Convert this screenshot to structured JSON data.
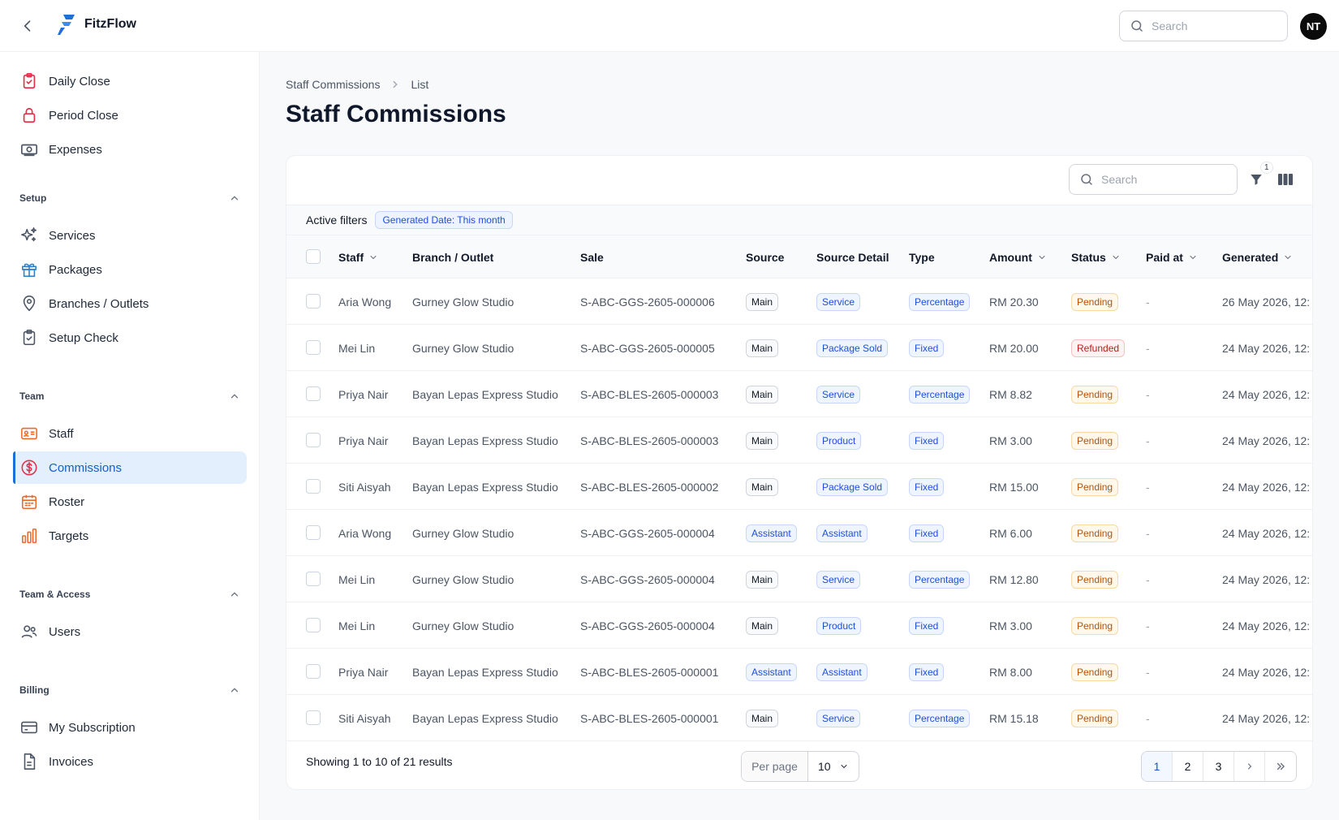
{
  "app": {
    "name": "FitzFlow"
  },
  "topbar": {
    "search_placeholder": "Search",
    "user_initials": "NT"
  },
  "sidebar": {
    "items_top": [
      {
        "label": "Daily Close",
        "icon": "clipboard-check-icon"
      },
      {
        "label": "Period Close",
        "icon": "lock-icon"
      },
      {
        "label": "Expenses",
        "icon": "banknote-icon"
      }
    ],
    "sections": [
      {
        "title": "Setup",
        "items": [
          {
            "label": "Services",
            "icon": "sparkles-icon"
          },
          {
            "label": "Packages",
            "icon": "gift-icon"
          },
          {
            "label": "Branches / Outlets",
            "icon": "map-pin-icon"
          },
          {
            "label": "Setup Check",
            "icon": "clipboard-check-icon"
          }
        ]
      },
      {
        "title": "Team",
        "items": [
          {
            "label": "Staff",
            "icon": "id-card-icon"
          },
          {
            "label": "Commissions",
            "icon": "dollar-circle-icon",
            "active": true
          },
          {
            "label": "Roster",
            "icon": "calendar-icon"
          },
          {
            "label": "Targets",
            "icon": "bar-chart-icon"
          }
        ]
      },
      {
        "title": "Team & Access",
        "items": [
          {
            "label": "Users",
            "icon": "users-icon"
          }
        ]
      },
      {
        "title": "Billing",
        "items": [
          {
            "label": "My Subscription",
            "icon": "credit-card-icon"
          },
          {
            "label": "Invoices",
            "icon": "document-icon"
          }
        ]
      }
    ]
  },
  "breadcrumb": {
    "parent": "Staff Commissions",
    "current": "List"
  },
  "page": {
    "title": "Staff Commissions"
  },
  "table": {
    "search_placeholder": "Search",
    "filter_count": "1",
    "active_filters_label": "Active filters",
    "filter_chip": "Generated Date: This month",
    "columns": {
      "staff": "Staff",
      "branch": "Branch / Outlet",
      "sale": "Sale",
      "source": "Source",
      "source_detail": "Source Detail",
      "type": "Type",
      "amount": "Amount",
      "status": "Status",
      "paid_at": "Paid at",
      "generated": "Generated"
    },
    "rows": [
      {
        "staff": "Aria Wong",
        "branch": "Gurney Glow Studio",
        "sale": "S-ABC-GGS-2605-000006",
        "source": "Main",
        "source_detail": "Service",
        "type": "Percentage",
        "amount": "RM 20.30",
        "status": "Pending",
        "paid_at": "-",
        "generated": "26 May 2026, 12:"
      },
      {
        "staff": "Mei Lin",
        "branch": "Gurney Glow Studio",
        "sale": "S-ABC-GGS-2605-000005",
        "source": "Main",
        "source_detail": "Package Sold",
        "type": "Fixed",
        "amount": "RM 20.00",
        "status": "Refunded",
        "paid_at": "-",
        "generated": "24 May 2026, 12:"
      },
      {
        "staff": "Priya Nair",
        "branch": "Bayan Lepas Express Studio",
        "sale": "S-ABC-BLES-2605-000003",
        "source": "Main",
        "source_detail": "Service",
        "type": "Percentage",
        "amount": "RM 8.82",
        "status": "Pending",
        "paid_at": "-",
        "generated": "24 May 2026, 12:"
      },
      {
        "staff": "Priya Nair",
        "branch": "Bayan Lepas Express Studio",
        "sale": "S-ABC-BLES-2605-000003",
        "source": "Main",
        "source_detail": "Product",
        "type": "Fixed",
        "amount": "RM 3.00",
        "status": "Pending",
        "paid_at": "-",
        "generated": "24 May 2026, 12:"
      },
      {
        "staff": "Siti Aisyah",
        "branch": "Bayan Lepas Express Studio",
        "sale": "S-ABC-BLES-2605-000002",
        "source": "Main",
        "source_detail": "Package Sold",
        "type": "Fixed",
        "amount": "RM 15.00",
        "status": "Pending",
        "paid_at": "-",
        "generated": "24 May 2026, 12:"
      },
      {
        "staff": "Aria Wong",
        "branch": "Gurney Glow Studio",
        "sale": "S-ABC-GGS-2605-000004",
        "source": "Assistant",
        "source_detail": "Assistant",
        "type": "Fixed",
        "amount": "RM 6.00",
        "status": "Pending",
        "paid_at": "-",
        "generated": "24 May 2026, 12:"
      },
      {
        "staff": "Mei Lin",
        "branch": "Gurney Glow Studio",
        "sale": "S-ABC-GGS-2605-000004",
        "source": "Main",
        "source_detail": "Service",
        "type": "Percentage",
        "amount": "RM 12.80",
        "status": "Pending",
        "paid_at": "-",
        "generated": "24 May 2026, 12:"
      },
      {
        "staff": "Mei Lin",
        "branch": "Gurney Glow Studio",
        "sale": "S-ABC-GGS-2605-000004",
        "source": "Main",
        "source_detail": "Product",
        "type": "Fixed",
        "amount": "RM 3.00",
        "status": "Pending",
        "paid_at": "-",
        "generated": "24 May 2026, 12:"
      },
      {
        "staff": "Priya Nair",
        "branch": "Bayan Lepas Express Studio",
        "sale": "S-ABC-BLES-2605-000001",
        "source": "Assistant",
        "source_detail": "Assistant",
        "type": "Fixed",
        "amount": "RM 8.00",
        "status": "Pending",
        "paid_at": "-",
        "generated": "24 May 2026, 12:"
      },
      {
        "staff": "Siti Aisyah",
        "branch": "Bayan Lepas Express Studio",
        "sale": "S-ABC-BLES-2605-000001",
        "source": "Main",
        "source_detail": "Service",
        "type": "Percentage",
        "amount": "RM 15.18",
        "status": "Pending",
        "paid_at": "-",
        "generated": "24 May 2026, 12:"
      }
    ]
  },
  "footer": {
    "results_text": "Showing 1 to 10 of 21 results",
    "per_page_label": "Per page",
    "per_page_value": "10",
    "pages": [
      "1",
      "2",
      "3"
    ],
    "current_page": "1"
  },
  "colors": {
    "accent": "#1e6fd6",
    "icon_red": "#e0314b",
    "icon_orange": "#ea6a2a",
    "icon_blue": "#2f80c7",
    "icon_gray": "#4b5563"
  }
}
